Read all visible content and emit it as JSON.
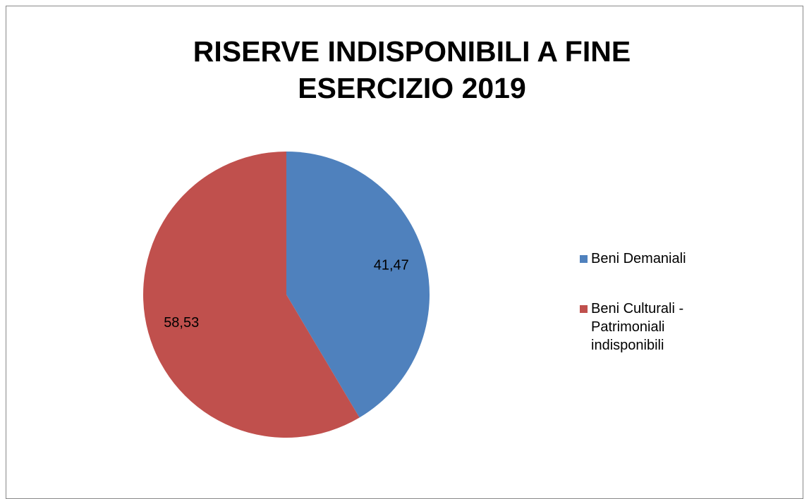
{
  "chart_data": {
    "type": "pie",
    "title": "RISERVE INDISPONIBILI A FINE ESERCIZIO 2019",
    "categories": [
      "Beni Demaniali",
      "Beni Culturali - Patrimoniali indisponibili"
    ],
    "values": [
      41.47,
      58.53
    ],
    "value_labels": [
      "41,47",
      "58,53"
    ],
    "colors": [
      "#4f81bd",
      "#c0504d"
    ],
    "legend": "right"
  }
}
